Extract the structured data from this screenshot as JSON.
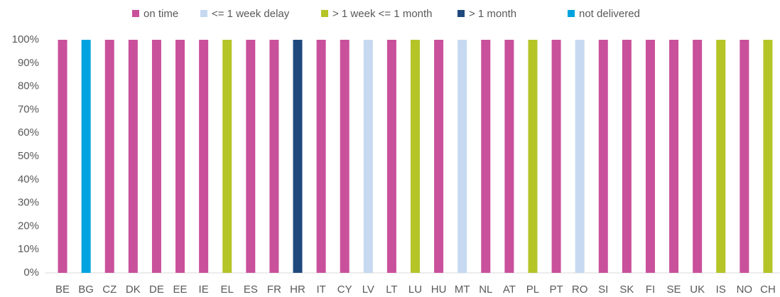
{
  "chart_data": {
    "type": "stacked_bar",
    "categories": [
      "BE",
      "BG",
      "CZ",
      "DK",
      "DE",
      "EE",
      "IE",
      "EL",
      "ES",
      "FR",
      "HR",
      "IT",
      "CY",
      "LV",
      "LT",
      "LU",
      "HU",
      "MT",
      "NL",
      "AT",
      "PL",
      "PT",
      "RO",
      "SI",
      "SK",
      "FI",
      "SE",
      "UK",
      "IS",
      "NO",
      "CH"
    ],
    "series": [
      {
        "name": "on time",
        "color": "#c9509b",
        "values": [
          100,
          0,
          100,
          100,
          100,
          100,
          100,
          0,
          100,
          100,
          0,
          100,
          100,
          0,
          100,
          0,
          100,
          0,
          100,
          100,
          0,
          100,
          0,
          100,
          100,
          100,
          100,
          100,
          0,
          100,
          0
        ]
      },
      {
        "name": "<= 1 week delay",
        "color": "#c6d9f1",
        "values": [
          0,
          0,
          0,
          0,
          0,
          0,
          0,
          0,
          0,
          0,
          0,
          0,
          0,
          100,
          0,
          0,
          0,
          100,
          0,
          0,
          0,
          0,
          100,
          0,
          0,
          0,
          0,
          0,
          0,
          0,
          0
        ]
      },
      {
        "name": "> 1 week <= 1 month",
        "color": "#b5c427",
        "values": [
          0,
          0,
          0,
          0,
          0,
          0,
          0,
          100,
          0,
          0,
          0,
          0,
          0,
          0,
          0,
          100,
          0,
          0,
          0,
          0,
          100,
          0,
          0,
          0,
          0,
          0,
          0,
          0,
          100,
          0,
          100
        ]
      },
      {
        "name": "> 1 month",
        "color": "#1f497d",
        "values": [
          0,
          0,
          0,
          0,
          0,
          0,
          0,
          0,
          0,
          0,
          100,
          0,
          0,
          0,
          0,
          0,
          0,
          0,
          0,
          0,
          0,
          0,
          0,
          0,
          0,
          0,
          0,
          0,
          0,
          0,
          0
        ]
      },
      {
        "name": "not delivered",
        "color": "#00a3df",
        "values": [
          0,
          100,
          0,
          0,
          0,
          0,
          0,
          0,
          0,
          0,
          0,
          0,
          0,
          0,
          0,
          0,
          0,
          0,
          0,
          0,
          0,
          0,
          0,
          0,
          0,
          0,
          0,
          0,
          0,
          0,
          0
        ]
      }
    ],
    "ylim": [
      0,
      100
    ],
    "yticks": [
      {
        "value": 0,
        "label": "0%"
      },
      {
        "value": 10,
        "label": "10%"
      },
      {
        "value": 20,
        "label": "20%"
      },
      {
        "value": 30,
        "label": "30%"
      },
      {
        "value": 40,
        "label": "40%"
      },
      {
        "value": 50,
        "label": "50%"
      },
      {
        "value": 60,
        "label": "60%"
      },
      {
        "value": 70,
        "label": "70%"
      },
      {
        "value": 80,
        "label": "80%"
      },
      {
        "value": 90,
        "label": "90%"
      },
      {
        "value": 100,
        "label": "100%"
      }
    ],
    "grid": false,
    "legend": "top"
  }
}
